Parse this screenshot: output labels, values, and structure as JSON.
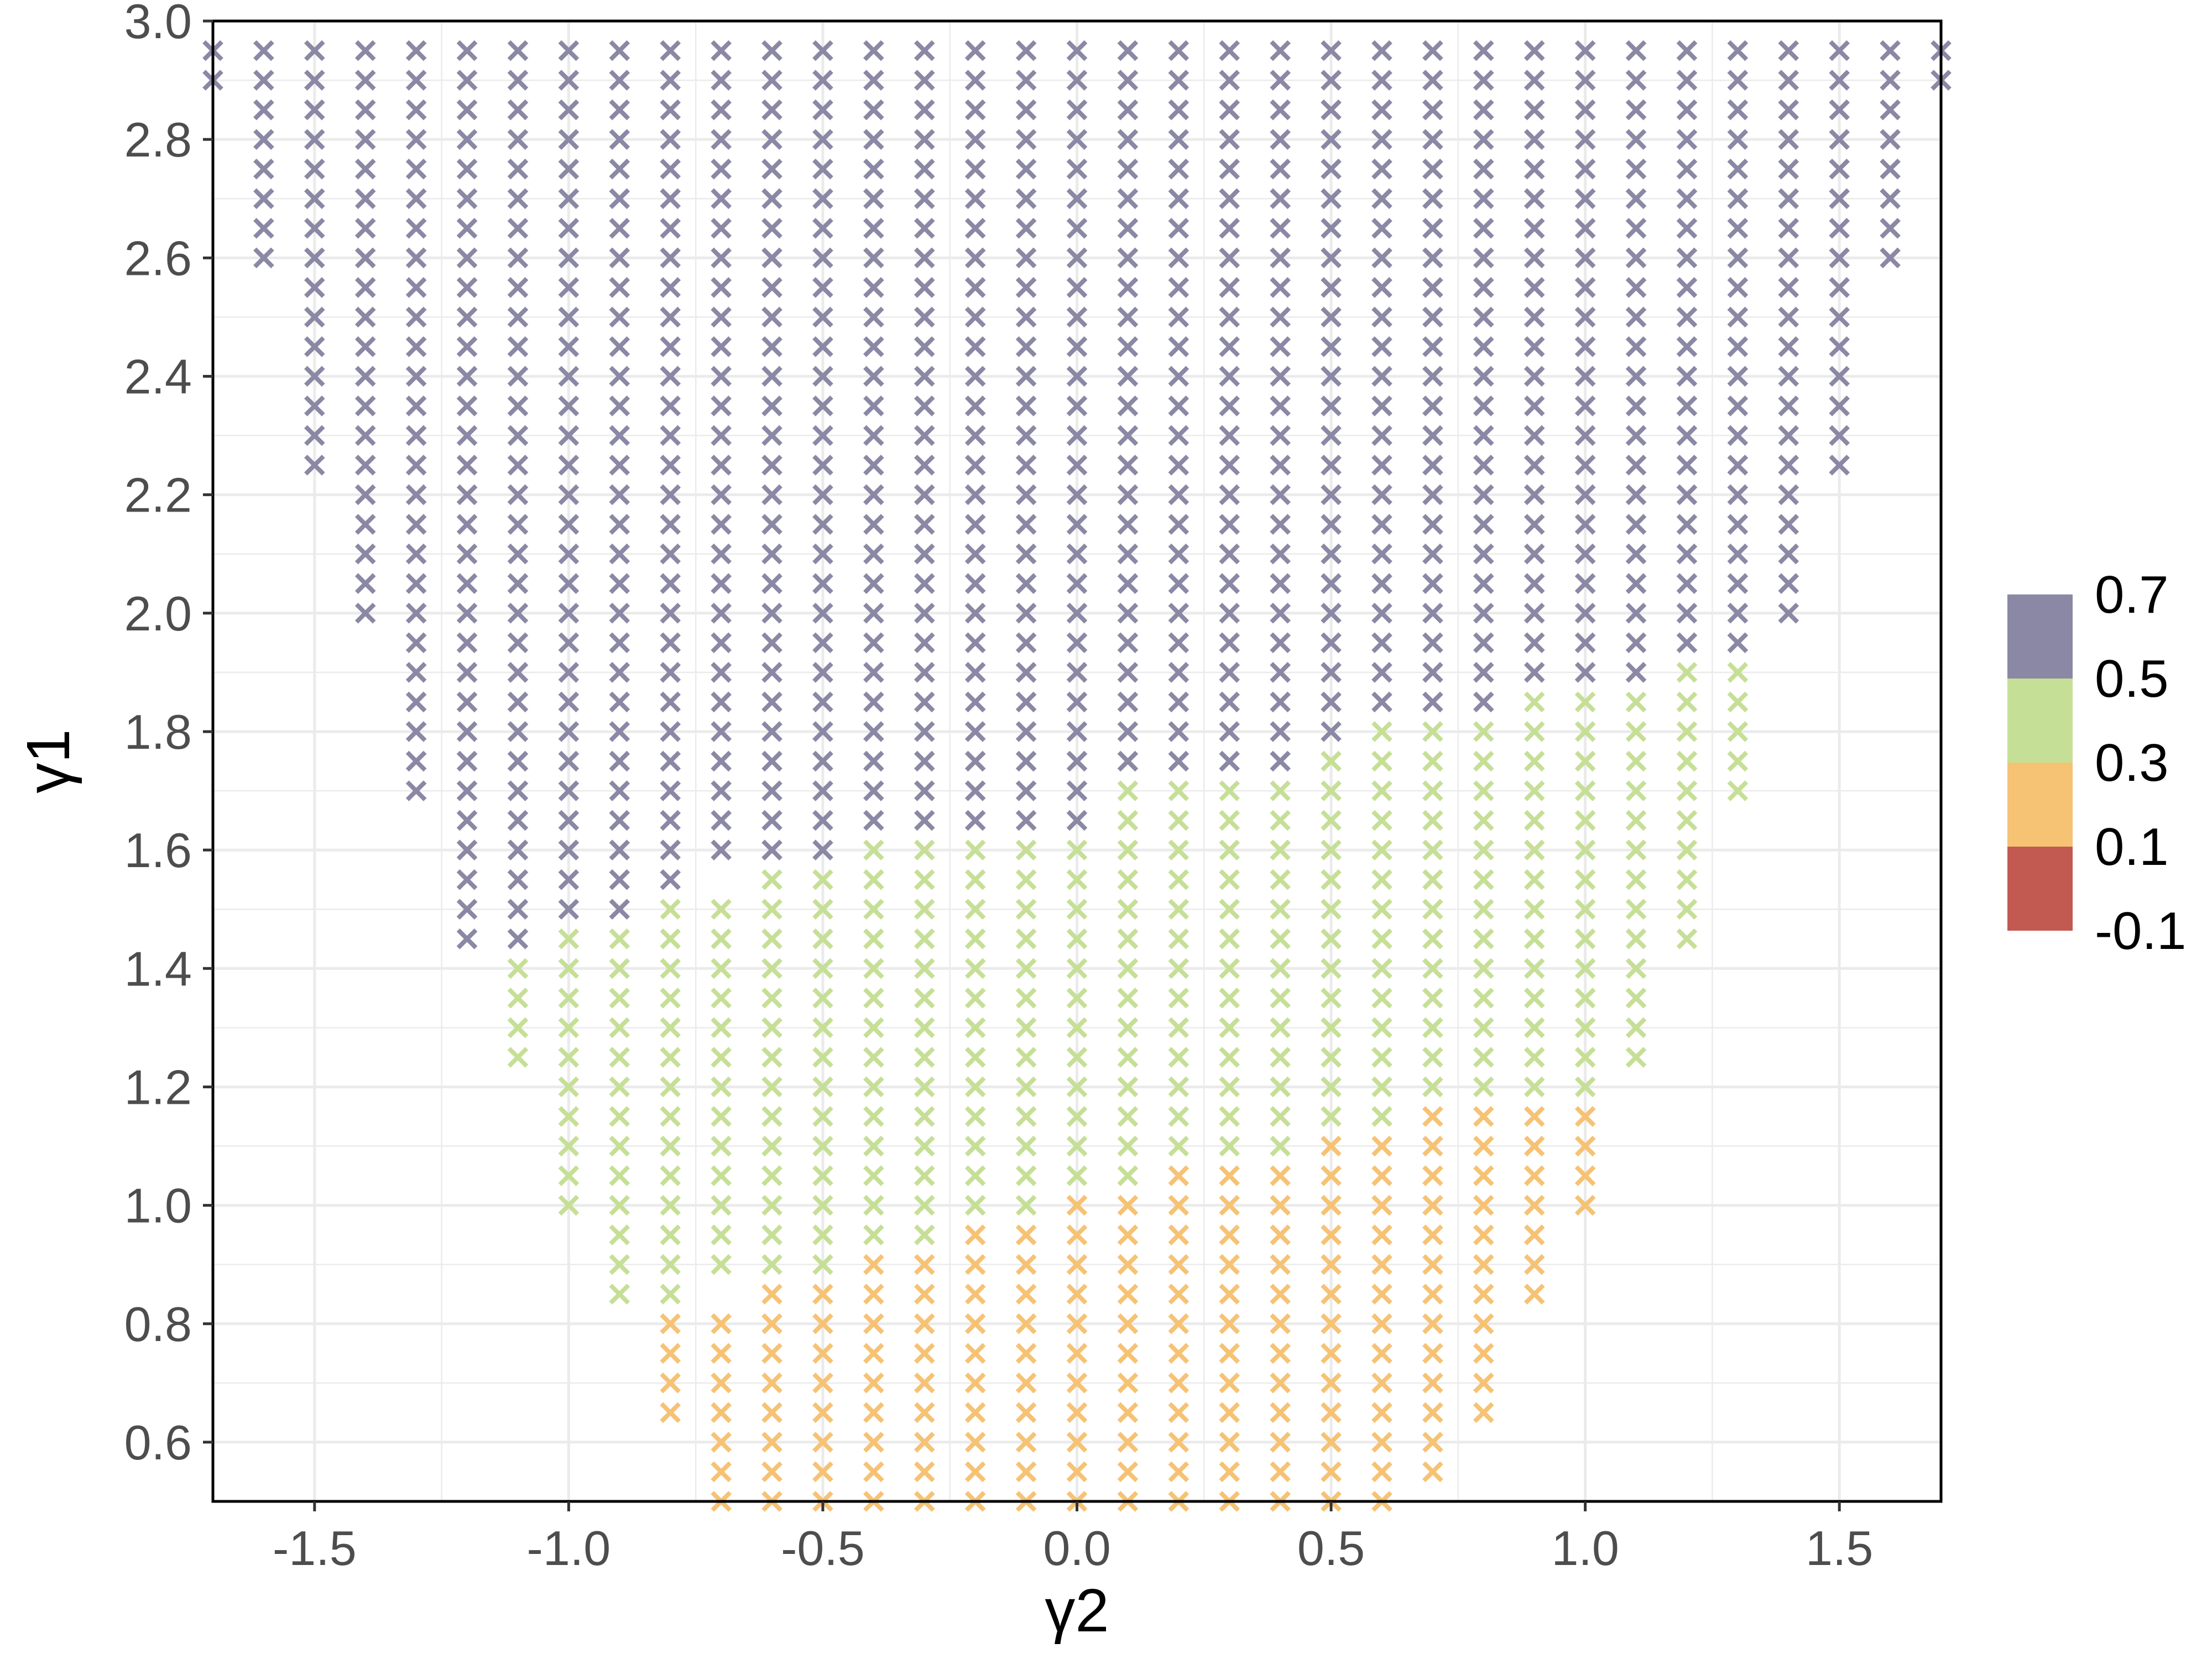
{
  "chart_data": {
    "type": "scatter",
    "title": "",
    "xlabel": "γ2",
    "ylabel": "γ1",
    "xlim": [
      -1.7,
      1.7
    ],
    "ylim": [
      0.5,
      3.0
    ],
    "grid": true,
    "marker": "x",
    "x_ticks": [
      -1.5,
      -1.0,
      -0.5,
      0.0,
      0.5,
      1.0,
      1.5
    ],
    "x_tick_labels": [
      "-1.5",
      "-1.0",
      "-0.5",
      "0.0",
      "0.5",
      "1.0",
      "1.5"
    ],
    "y_ticks": [
      0.6,
      0.8,
      1.0,
      1.2,
      1.4,
      1.6,
      1.8,
      2.0,
      2.2,
      2.4,
      2.6,
      2.8,
      3.0
    ],
    "y_tick_labels": [
      "0.6",
      "0.8",
      "1.0",
      "1.2",
      "1.4",
      "1.6",
      "1.8",
      "2.0",
      "2.2",
      "2.4",
      "2.6",
      "2.8",
      "3.0"
    ],
    "legend": {
      "placement": "right",
      "boundary_labels": [
        "0.7",
        "0.5",
        "0.3",
        "0.1",
        "-0.1"
      ],
      "bins": [
        {
          "range": [
            0.5,
            0.7
          ],
          "color": "#8b88a5"
        },
        {
          "range": [
            0.3,
            0.5
          ],
          "color": "#c6df96"
        },
        {
          "range": [
            0.1,
            0.3
          ],
          "color": "#f6c274"
        },
        {
          "range": [
            -0.1,
            0.1
          ],
          "color": "#c25a52"
        }
      ]
    },
    "series": [
      {
        "bin": [
          0.5,
          0.7
        ],
        "color": "#8b88a5",
        "columns": [
          {
            "x": -1.7,
            "y_min": 2.9,
            "y_max": 2.95
          },
          {
            "x": -1.6,
            "y_min": 2.6,
            "y_max": 2.95
          },
          {
            "x": -1.5,
            "y_min": 2.25,
            "y_max": 2.95
          },
          {
            "x": -1.4,
            "y_min": 2.0,
            "y_max": 2.95
          },
          {
            "x": -1.3,
            "y_min": 1.7,
            "y_max": 2.95
          },
          {
            "x": -1.2,
            "y_min": 1.45,
            "y_max": 2.95
          },
          {
            "x": -1.1,
            "y_min": 1.45,
            "y_max": 2.95
          },
          {
            "x": -1.0,
            "y_min": 1.5,
            "y_max": 2.95
          },
          {
            "x": -0.9,
            "y_min": 1.5,
            "y_max": 2.95
          },
          {
            "x": -0.8,
            "y_min": 1.55,
            "y_max": 2.95
          },
          {
            "x": -0.7,
            "y_min": 1.6,
            "y_max": 2.95
          },
          {
            "x": -0.6,
            "y_min": 1.6,
            "y_max": 2.95
          },
          {
            "x": -0.5,
            "y_min": 1.6,
            "y_max": 2.95
          },
          {
            "x": -0.4,
            "y_min": 1.65,
            "y_max": 2.95
          },
          {
            "x": -0.3,
            "y_min": 1.65,
            "y_max": 2.95
          },
          {
            "x": -0.2,
            "y_min": 1.65,
            "y_max": 2.95
          },
          {
            "x": -0.1,
            "y_min": 1.65,
            "y_max": 2.95
          },
          {
            "x": 0.0,
            "y_min": 1.65,
            "y_max": 2.95
          },
          {
            "x": 0.1,
            "y_min": 1.75,
            "y_max": 2.95
          },
          {
            "x": 0.2,
            "y_min": 1.75,
            "y_max": 2.95
          },
          {
            "x": 0.3,
            "y_min": 1.75,
            "y_max": 2.95
          },
          {
            "x": 0.4,
            "y_min": 1.75,
            "y_max": 2.95
          },
          {
            "x": 0.5,
            "y_min": 1.8,
            "y_max": 2.95
          },
          {
            "x": 0.6,
            "y_min": 1.85,
            "y_max": 2.95
          },
          {
            "x": 0.7,
            "y_min": 1.85,
            "y_max": 2.95
          },
          {
            "x": 0.8,
            "y_min": 1.85,
            "y_max": 2.95
          },
          {
            "x": 0.9,
            "y_min": 1.9,
            "y_max": 2.95
          },
          {
            "x": 1.0,
            "y_min": 1.9,
            "y_max": 2.95
          },
          {
            "x": 1.1,
            "y_min": 1.9,
            "y_max": 2.95
          },
          {
            "x": 1.2,
            "y_min": 1.95,
            "y_max": 2.95
          },
          {
            "x": 1.3,
            "y_min": 1.95,
            "y_max": 2.95
          },
          {
            "x": 1.4,
            "y_min": 2.0,
            "y_max": 2.95
          },
          {
            "x": 1.5,
            "y_min": 2.25,
            "y_max": 2.95
          },
          {
            "x": 1.6,
            "y_min": 2.6,
            "y_max": 2.95
          },
          {
            "x": 1.7,
            "y_min": 2.9,
            "y_max": 2.95
          }
        ]
      },
      {
        "bin": [
          0.3,
          0.5
        ],
        "color": "#c6df96",
        "columns": [
          {
            "x": -1.1,
            "y_min": 1.25,
            "y_max": 1.4
          },
          {
            "x": -1.0,
            "y_min": 1.0,
            "y_max": 1.45
          },
          {
            "x": -0.9,
            "y_min": 0.85,
            "y_max": 1.45
          },
          {
            "x": -0.8,
            "y_min": 0.85,
            "y_max": 1.5
          },
          {
            "x": -0.7,
            "y_min": 0.9,
            "y_max": 1.5
          },
          {
            "x": -0.6,
            "y_min": 0.9,
            "y_max": 1.55
          },
          {
            "x": -0.5,
            "y_min": 0.9,
            "y_max": 1.55
          },
          {
            "x": -0.4,
            "y_min": 0.95,
            "y_max": 1.6
          },
          {
            "x": -0.3,
            "y_min": 0.95,
            "y_max": 1.6
          },
          {
            "x": -0.2,
            "y_min": 1.0,
            "y_max": 1.6
          },
          {
            "x": -0.1,
            "y_min": 1.0,
            "y_max": 1.6
          },
          {
            "x": 0.0,
            "y_min": 1.05,
            "y_max": 1.6
          },
          {
            "x": 0.1,
            "y_min": 1.05,
            "y_max": 1.7
          },
          {
            "x": 0.2,
            "y_min": 1.1,
            "y_max": 1.7
          },
          {
            "x": 0.3,
            "y_min": 1.1,
            "y_max": 1.7
          },
          {
            "x": 0.4,
            "y_min": 1.1,
            "y_max": 1.7
          },
          {
            "x": 0.5,
            "y_min": 1.15,
            "y_max": 1.75
          },
          {
            "x": 0.6,
            "y_min": 1.15,
            "y_max": 1.8
          },
          {
            "x": 0.7,
            "y_min": 1.2,
            "y_max": 1.8
          },
          {
            "x": 0.8,
            "y_min": 1.2,
            "y_max": 1.8
          },
          {
            "x": 0.9,
            "y_min": 1.2,
            "y_max": 1.85
          },
          {
            "x": 1.0,
            "y_min": 1.2,
            "y_max": 1.85
          },
          {
            "x": 1.1,
            "y_min": 1.25,
            "y_max": 1.85
          },
          {
            "x": 1.2,
            "y_min": 1.45,
            "y_max": 1.9
          },
          {
            "x": 1.3,
            "y_min": 1.7,
            "y_max": 1.9
          }
        ]
      },
      {
        "bin": [
          0.1,
          0.3
        ],
        "color": "#f6c274",
        "columns": [
          {
            "x": -0.8,
            "y_min": 0.65,
            "y_max": 0.8
          },
          {
            "x": -0.7,
            "y_min": 0.5,
            "y_max": 0.8
          },
          {
            "x": -0.6,
            "y_min": 0.5,
            "y_max": 0.85
          },
          {
            "x": -0.5,
            "y_min": 0.5,
            "y_max": 0.85
          },
          {
            "x": -0.4,
            "y_min": 0.5,
            "y_max": 0.9
          },
          {
            "x": -0.3,
            "y_min": 0.5,
            "y_max": 0.9
          },
          {
            "x": -0.2,
            "y_min": 0.5,
            "y_max": 0.95
          },
          {
            "x": -0.1,
            "y_min": 0.5,
            "y_max": 0.95
          },
          {
            "x": 0.0,
            "y_min": 0.5,
            "y_max": 1.0
          },
          {
            "x": 0.1,
            "y_min": 0.5,
            "y_max": 1.0
          },
          {
            "x": 0.2,
            "y_min": 0.5,
            "y_max": 1.05
          },
          {
            "x": 0.3,
            "y_min": 0.5,
            "y_max": 1.05
          },
          {
            "x": 0.4,
            "y_min": 0.5,
            "y_max": 1.05
          },
          {
            "x": 0.5,
            "y_min": 0.5,
            "y_max": 1.1
          },
          {
            "x": 0.6,
            "y_min": 0.5,
            "y_max": 1.1
          },
          {
            "x": 0.7,
            "y_min": 0.55,
            "y_max": 1.15
          },
          {
            "x": 0.8,
            "y_min": 0.65,
            "y_max": 1.15
          },
          {
            "x": 0.9,
            "y_min": 0.85,
            "y_max": 1.15
          },
          {
            "x": 1.0,
            "y_min": 1.0,
            "y_max": 1.15
          }
        ]
      }
    ]
  }
}
